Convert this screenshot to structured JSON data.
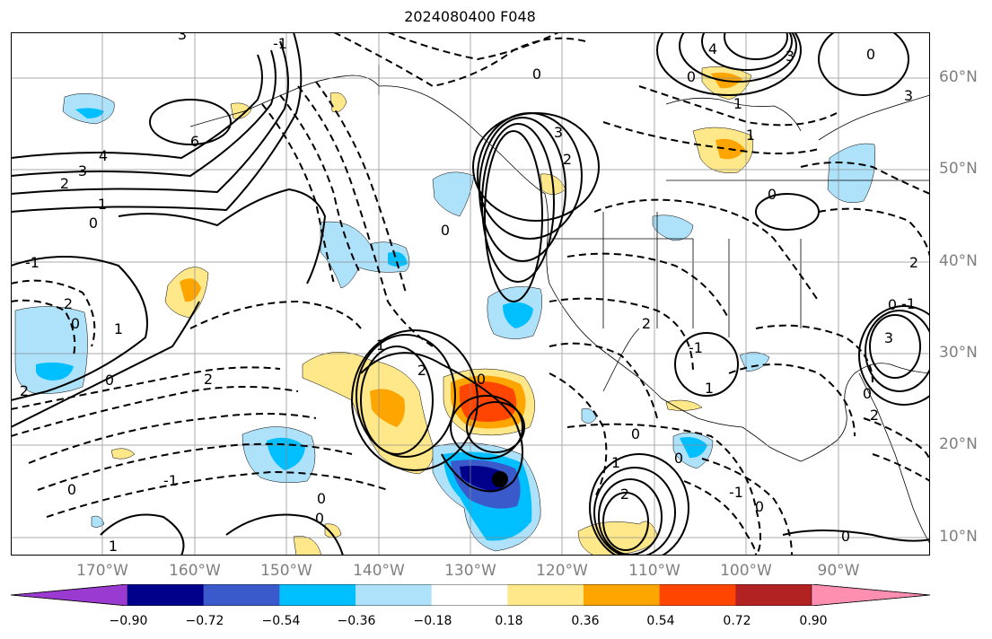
{
  "title": "2024080400 F048",
  "lat_labels": [
    "60°N",
    "50°N",
    "40°N",
    "30°N",
    "20°N",
    "10°N"
  ],
  "lon_labels": [
    "170°W",
    "160°W",
    "150°W",
    "140°W",
    "130°W",
    "120°W",
    "110°W",
    "100°W",
    "90°W"
  ],
  "contour_labels": [
    "3",
    "4",
    "6",
    "3",
    "2",
    "1",
    "0",
    "-1",
    "2",
    "0",
    "2",
    "1",
    "0",
    "2",
    "0",
    "-1",
    "0",
    "1",
    "2",
    "0",
    "0",
    "3",
    "2",
    "0",
    "4",
    "3",
    "1",
    "1",
    "0",
    "0",
    "-1",
    "2",
    "1",
    "0",
    "0",
    "3",
    "0",
    "1",
    "0",
    "2",
    "-1",
    "0",
    "2",
    "3",
    "0",
    "1",
    "0",
    "-1",
    "0",
    "2",
    "-1"
  ],
  "colorbar": {
    "ticks": [
      "−0.90",
      "−0.72",
      "−0.54",
      "−0.36",
      "−0.18",
      "0.18",
      "0.36",
      "0.54",
      "0.72",
      "0.90"
    ],
    "colors": [
      "#9a3ad0",
      "#00008b",
      "#3a5acb",
      "#00bfff",
      "#aee2fb",
      "#ffffff",
      "#ffe88a",
      "#ffa500",
      "#ff4500",
      "#b22222",
      "#ff8fb0"
    ]
  },
  "chart_data": {
    "type": "map",
    "title": "2024080400 F048",
    "projection": "PlateCarree",
    "lon_range": [
      -180,
      -80
    ],
    "lat_range": [
      8,
      65
    ],
    "lon_ticks": [
      -170,
      -160,
      -150,
      -140,
      -130,
      -120,
      -110,
      -100,
      -90
    ],
    "lat_ticks": [
      10,
      20,
      30,
      40,
      50,
      60
    ],
    "grid": true,
    "shading_levels": [
      -0.9,
      -0.72,
      -0.54,
      -0.36,
      -0.18,
      0.18,
      0.36,
      0.54,
      0.72,
      0.9
    ],
    "shading_colors": [
      "#9a3ad0",
      "#00008b",
      "#3a5acb",
      "#00bfff",
      "#aee2fb",
      "#ffffff",
      "#ffe88a",
      "#ffa500",
      "#ff4500",
      "#b22222",
      "#ff8fb0"
    ],
    "marker": {
      "lon": -126.2,
      "lat": 16.0
    },
    "contours": "solid lines = non-negative values, dashed = negative values"
  }
}
